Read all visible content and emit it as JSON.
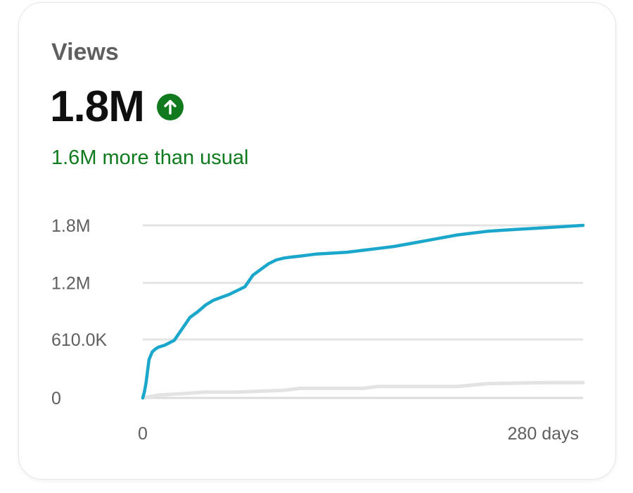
{
  "card": {
    "title": "Views",
    "value": "1.8M",
    "trend_icon": "arrow-up-circle-icon",
    "trend_color": "#117a1e",
    "comparison": "1.6M more than usual"
  },
  "chart_data": {
    "type": "line",
    "title": "",
    "xlabel": "",
    "ylabel": "",
    "x_tick_labels": [
      "0",
      "280 days"
    ],
    "y_tick_labels": [
      "0",
      "610.0K",
      "1.2M",
      "1.8M"
    ],
    "y_ticks": [
      0,
      610000,
      1200000,
      1800000
    ],
    "xlim": [
      0,
      280
    ],
    "ylim": [
      0,
      1800000
    ],
    "grid": true,
    "series": [
      {
        "color": "#1ba6cc",
        "x": [
          0,
          1,
          2,
          4,
          6,
          8,
          10,
          14,
          20,
          25,
          30,
          35,
          40,
          45,
          50,
          55,
          60,
          65,
          70,
          75,
          80,
          85,
          90,
          95,
          100,
          110,
          120,
          130,
          140,
          150,
          160,
          170,
          180,
          190,
          200,
          210,
          220,
          230,
          240,
          250,
          260,
          270,
          280
        ],
        "y": [
          0,
          60000,
          150000,
          400000,
          480000,
          510000,
          530000,
          550000,
          600000,
          720000,
          840000,
          900000,
          970000,
          1020000,
          1050000,
          1080000,
          1120000,
          1160000,
          1280000,
          1340000,
          1400000,
          1440000,
          1460000,
          1470000,
          1480000,
          1500000,
          1510000,
          1520000,
          1540000,
          1560000,
          1580000,
          1610000,
          1640000,
          1670000,
          1700000,
          1720000,
          1740000,
          1750000,
          1760000,
          1770000,
          1780000,
          1790000,
          1800000
        ]
      },
      {
        "color": "#e3e3e3",
        "x": [
          0,
          10,
          20,
          40,
          60,
          90,
          100,
          140,
          150,
          200,
          220,
          260,
          280
        ],
        "y": [
          0,
          30000,
          40000,
          60000,
          60000,
          80000,
          100000,
          100000,
          120000,
          120000,
          150000,
          160000,
          160000
        ]
      }
    ]
  }
}
